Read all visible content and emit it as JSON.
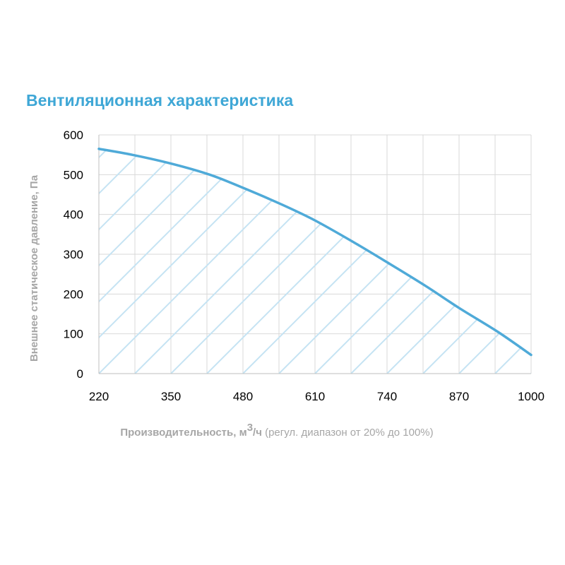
{
  "chart_data": {
    "type": "area",
    "title": "Вентиляционная характеристика",
    "ylabel": "Внешнее статическое давление, Па",
    "xlabel": {
      "main": "Производительность, м",
      "superscript": "3",
      "unit_suffix": "/ч",
      "note": " (регул. диапазон от 20% до 100%)"
    },
    "x_ticks": [
      "220",
      "350",
      "480",
      "610",
      "740",
      "870",
      "1000"
    ],
    "y_ticks": [
      "0",
      "100",
      "200",
      "300",
      "400",
      "500",
      "600"
    ],
    "xlim": [
      220,
      1000
    ],
    "ylim": [
      0,
      600
    ],
    "grid": true,
    "fill": "hatched",
    "series": [
      {
        "x": [
          220,
          280,
          350,
          420,
          480,
          550,
          610,
          680,
          740,
          810,
          870,
          940,
          1000
        ],
        "y": [
          565,
          550,
          528,
          500,
          467,
          425,
          385,
          330,
          280,
          220,
          165,
          105,
          47
        ]
      }
    ],
    "colors": {
      "title": "#3FA7D6",
      "curve": "#4FAAD8",
      "hatch": "#C5E3F3",
      "grid": "#D9D9D9",
      "axis_label": "#A6A6A6"
    }
  }
}
